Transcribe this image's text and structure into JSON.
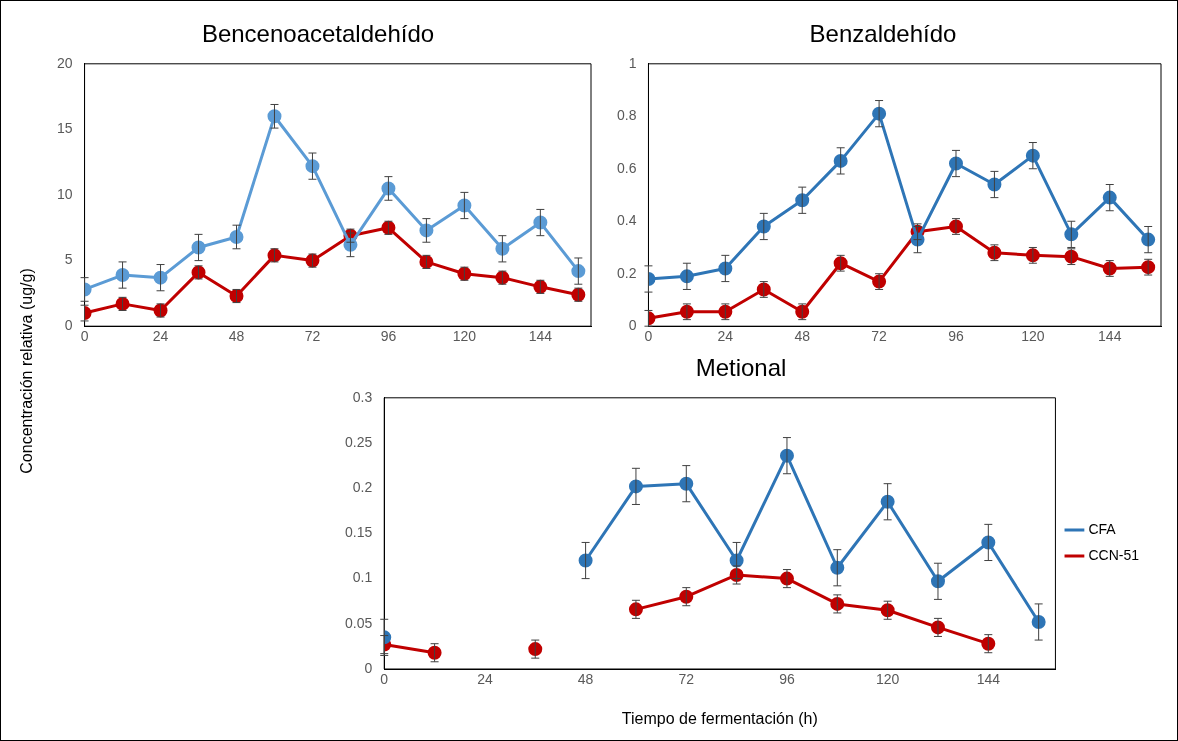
{
  "chart_data": [
    {
      "type": "line",
      "title": "Bencenoacetaldehído",
      "ylabel": "Concentración relativa (ug/g)",
      "x": [
        0,
        12,
        24,
        36,
        48,
        60,
        72,
        84,
        96,
        108,
        120,
        132,
        144,
        156
      ],
      "xlim": [
        0,
        160
      ],
      "xticks": [
        0,
        24,
        48,
        72,
        96,
        120,
        144
      ],
      "ylim": [
        0,
        20
      ],
      "yticks": [
        0,
        5,
        10,
        15,
        20
      ],
      "grid": false,
      "legend": false,
      "marker": "circle",
      "line_style": "solid",
      "series": [
        {
          "color": "#5b9bd5",
          "values": [
            2.8,
            3.9,
            3.7,
            6.0,
            6.8,
            16.0,
            12.2,
            6.2,
            10.5,
            7.3,
            9.2,
            5.9,
            7.9,
            4.2
          ],
          "errors": [
            0.9,
            1.0,
            1.0,
            1.0,
            0.9,
            0.9,
            1.0,
            0.9,
            0.9,
            0.9,
            1.0,
            1.0,
            1.0,
            1.0
          ]
        },
        {
          "color": "#c00000",
          "values": [
            1.0,
            1.7,
            1.2,
            4.1,
            2.3,
            5.4,
            5.0,
            6.9,
            7.5,
            4.9,
            4.0,
            3.7,
            3.0,
            2.4
          ],
          "errors": [
            0.6,
            0.5,
            0.5,
            0.5,
            0.5,
            0.5,
            0.5,
            0.5,
            0.5,
            0.5,
            0.5,
            0.5,
            0.5,
            0.5
          ]
        }
      ]
    },
    {
      "type": "line",
      "title": "Benzaldehído",
      "x": [
        0,
        12,
        24,
        36,
        48,
        60,
        72,
        84,
        96,
        108,
        120,
        132,
        144,
        156
      ],
      "xlim": [
        0,
        160
      ],
      "xticks": [
        0,
        24,
        48,
        72,
        96,
        120,
        144
      ],
      "ylim": [
        0,
        1
      ],
      "yticks": [
        0,
        0.2,
        0.4,
        0.6,
        0.8,
        1
      ],
      "grid": false,
      "legend": false,
      "marker": "circle",
      "line_style": "solid",
      "series": [
        {
          "color": "#2e75b6",
          "values": [
            0.18,
            0.19,
            0.22,
            0.38,
            0.48,
            0.63,
            0.81,
            0.33,
            0.62,
            0.54,
            0.65,
            0.35,
            0.49,
            0.33
          ],
          "errors": [
            0.05,
            0.05,
            0.05,
            0.05,
            0.05,
            0.05,
            0.05,
            0.05,
            0.05,
            0.05,
            0.05,
            0.05,
            0.05,
            0.05
          ]
        },
        {
          "color": "#c00000",
          "values": [
            0.03,
            0.055,
            0.055,
            0.14,
            0.055,
            0.24,
            0.17,
            0.36,
            0.38,
            0.28,
            0.27,
            0.265,
            0.22,
            0.225
          ],
          "errors": [
            0.03,
            0.03,
            0.03,
            0.03,
            0.03,
            0.03,
            0.03,
            0.03,
            0.03,
            0.03,
            0.03,
            0.03,
            0.03,
            0.03
          ]
        }
      ]
    },
    {
      "type": "line",
      "title": "Metional",
      "xlabel": "Tiempo de fermentación (h)",
      "x": [
        0,
        12,
        24,
        36,
        48,
        60,
        72,
        84,
        96,
        108,
        120,
        132,
        144,
        156
      ],
      "xlim": [
        0,
        160
      ],
      "xticks": [
        0,
        24,
        48,
        72,
        96,
        120,
        144
      ],
      "ylim": [
        0,
        0.3
      ],
      "yticks": [
        0,
        0.05,
        0.1,
        0.15,
        0.2,
        0.25,
        0.3
      ],
      "grid": false,
      "legend": "right",
      "marker": "circle",
      "line_style": "solid",
      "series": [
        {
          "name": "CFA",
          "color": "#2e75b6",
          "values": [
            0.035,
            null,
            null,
            null,
            0.12,
            0.202,
            0.205,
            0.12,
            0.236,
            0.112,
            0.185,
            0.097,
            0.14,
            0.052
          ],
          "errors": [
            0.02,
            null,
            null,
            null,
            0.02,
            0.02,
            0.02,
            0.02,
            0.02,
            0.02,
            0.02,
            0.02,
            0.02,
            0.02
          ]
        },
        {
          "name": "CCN-51",
          "color": "#c00000",
          "values": [
            0.027,
            0.018,
            null,
            0.022,
            null,
            0.066,
            0.08,
            0.104,
            0.1,
            0.072,
            0.065,
            0.046,
            0.028,
            null
          ],
          "errors": [
            0.01,
            0.01,
            null,
            0.01,
            null,
            0.01,
            0.01,
            0.01,
            0.01,
            0.01,
            0.01,
            0.01,
            0.01,
            null
          ]
        }
      ]
    }
  ]
}
